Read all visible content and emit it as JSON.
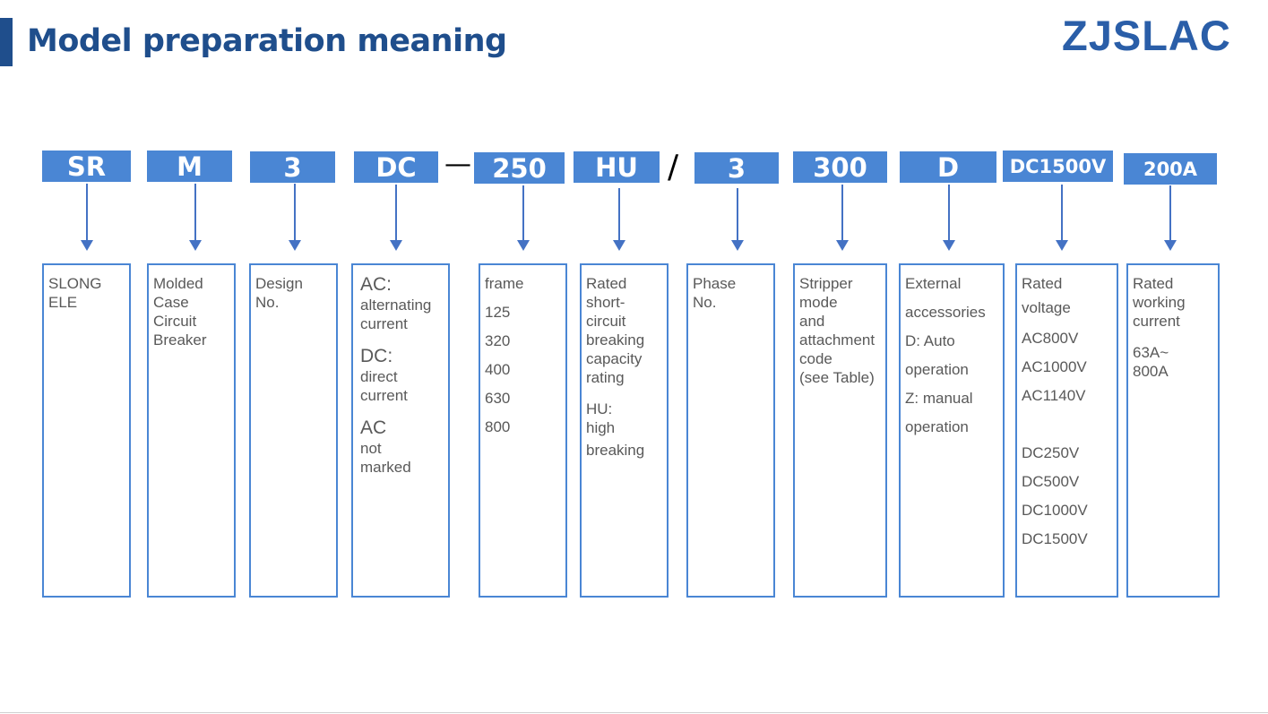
{
  "title": "Model preparation meaning",
  "logo": "ZJSLAC",
  "colors": {
    "title": "#1f4e8c",
    "code_bg": "#4a86d4",
    "arrow": "#4472c4",
    "text": "#595959"
  },
  "codes": [
    "SR",
    "M",
    "3",
    "DC",
    "250",
    "HU",
    "3",
    "300",
    "D",
    "DC1500V",
    "200A"
  ],
  "separators": {
    "dash": "—",
    "slash": "/"
  },
  "boxes": [
    [
      "SLONG",
      "ELE"
    ],
    [
      "Molded",
      "Case",
      "Circuit",
      "Breaker"
    ],
    [
      "Design",
      "No."
    ],
    [
      "AC:",
      "alternating",
      "current",
      "DC:",
      "direct",
      "current",
      "AC",
      "not",
      "marked"
    ],
    [
      "frame",
      "125",
      "320",
      "400",
      "630",
      "800"
    ],
    [
      "Rated",
      "short-",
      "circuit",
      "breaking",
      "capacity",
      "rating",
      "HU:",
      "high",
      "breaking"
    ],
    [
      "Phase",
      "No."
    ],
    [
      "Stripper",
      "mode",
      "and",
      "attachment",
      "code",
      "(see Table)"
    ],
    [
      "External",
      "accessories",
      "D: Auto",
      "operation",
      "Z: manual",
      "operation"
    ],
    [
      "Rated",
      "voltage",
      "AC800V",
      "AC1000V",
      "AC1140V",
      "DC250V",
      "DC500V",
      "DC1000V",
      "DC1500V"
    ],
    [
      "Rated",
      "working",
      "current",
      "63A~",
      "800A"
    ]
  ]
}
